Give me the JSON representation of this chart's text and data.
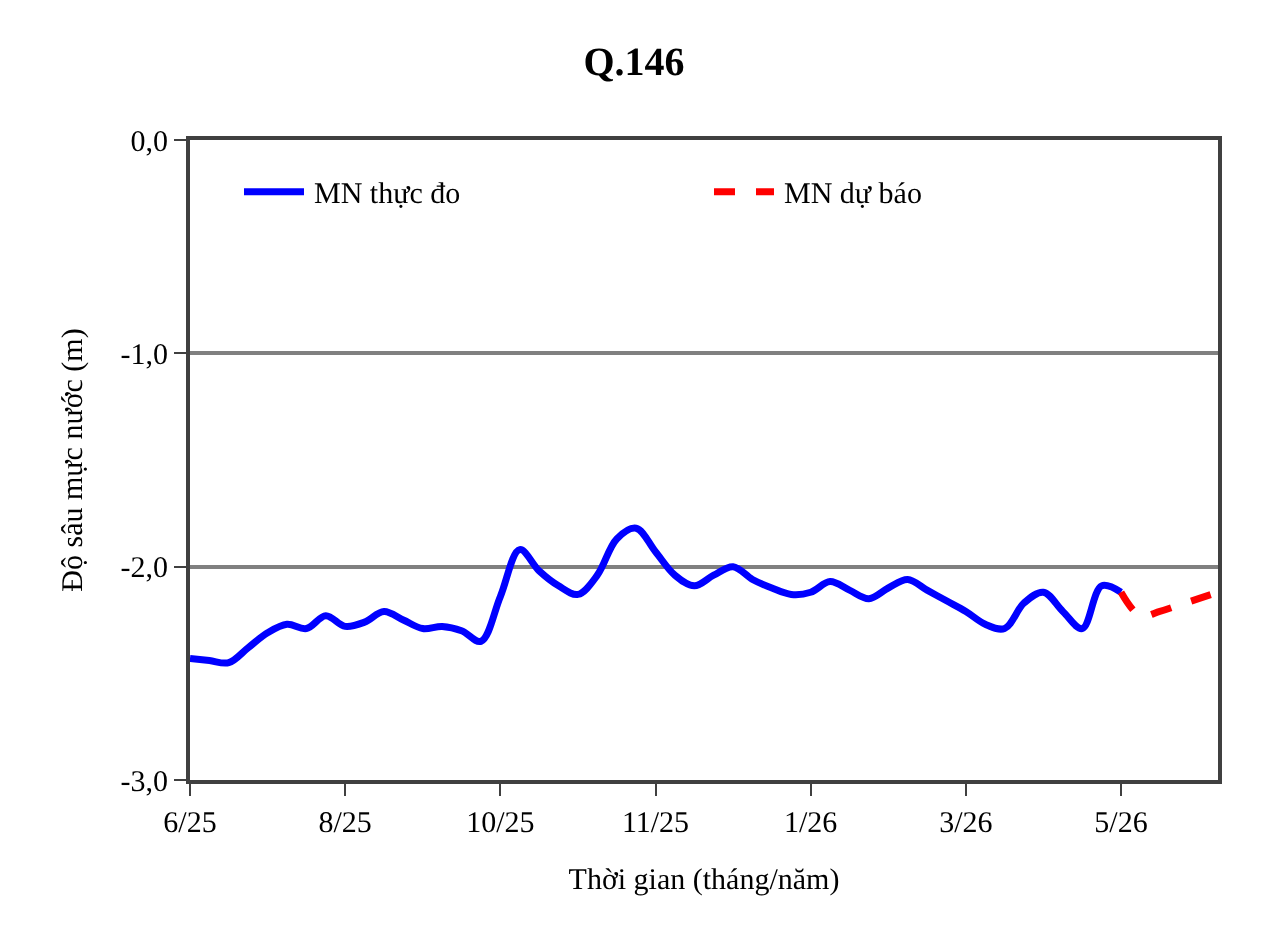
{
  "chart_data": {
    "type": "line",
    "title": "Q.146",
    "xlabel": "Thời gian (tháng/năm)",
    "ylabel": "Độ sâu mực nước (m)",
    "categories": [
      "6/25",
      null,
      null,
      null,
      null,
      null,
      null,
      null,
      "8/25",
      null,
      null,
      null,
      null,
      null,
      null,
      null,
      "10/25",
      null,
      null,
      null,
      null,
      null,
      null,
      null,
      "11/25",
      null,
      null,
      null,
      null,
      null,
      null,
      null,
      "1/26",
      null,
      null,
      null,
      null,
      null,
      null,
      null,
      "3/26",
      null,
      null,
      null,
      null,
      null,
      null,
      null,
      "5/26",
      null,
      null,
      null,
      null,
      null
    ],
    "ylim": [
      -3,
      0
    ],
    "yticks": [
      {
        "value": 0,
        "label": "0,0"
      },
      {
        "value": -1,
        "label": "-1,0"
      },
      {
        "value": -2,
        "label": "-2,0"
      },
      {
        "value": -3,
        "label": "-3,0"
      }
    ],
    "grid": "y",
    "legend": "top",
    "marker": "none",
    "series": [
      {
        "name": "MN thực đo",
        "color": "#0000ff",
        "line_style": "solid",
        "values": [
          -2.43,
          -2.44,
          -2.45,
          -2.38,
          -2.31,
          -2.27,
          -2.29,
          -2.23,
          -2.28,
          -2.26,
          -2.21,
          -2.25,
          -2.29,
          -2.28,
          -2.3,
          -2.35,
          -2.14,
          -1.92,
          -2.02,
          -2.09,
          -2.13,
          -2.04,
          -1.87,
          -1.82,
          -1.93,
          -2.04,
          -2.09,
          -2.04,
          -2.0,
          -2.06,
          -2.1,
          -2.13,
          -2.12,
          -2.07,
          -2.11,
          -2.15,
          -2.1,
          -2.06,
          -2.11,
          -2.16,
          -2.21,
          -2.27,
          -2.29,
          -2.17,
          -2.12,
          -2.21,
          -2.29,
          -2.09,
          -2.12,
          null,
          null,
          null,
          null,
          null
        ]
      },
      {
        "name": "MN dự báo",
        "color": "#ff0000",
        "line_style": "dashed",
        "values": [
          null,
          null,
          null,
          null,
          null,
          null,
          null,
          null,
          null,
          null,
          null,
          null,
          null,
          null,
          null,
          null,
          null,
          null,
          null,
          null,
          null,
          null,
          null,
          null,
          null,
          null,
          null,
          null,
          null,
          null,
          null,
          null,
          null,
          null,
          null,
          null,
          null,
          null,
          null,
          null,
          null,
          null,
          null,
          null,
          null,
          null,
          null,
          null,
          -2.12,
          -2.23,
          -2.21,
          -2.18,
          -2.15,
          -2.12
        ]
      }
    ]
  }
}
